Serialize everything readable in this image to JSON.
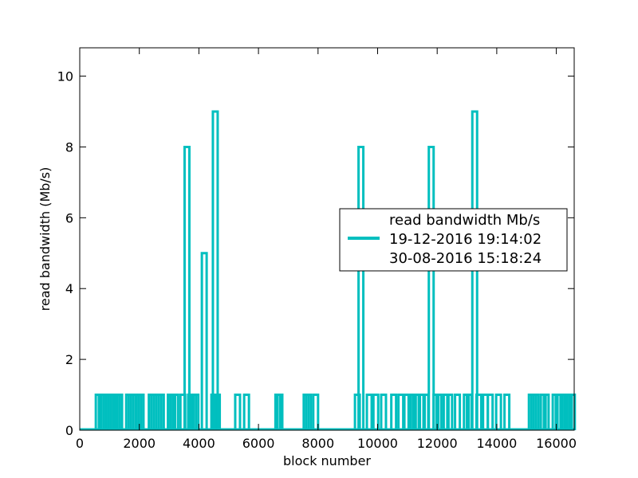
{
  "chart_data": {
    "type": "line",
    "title": "",
    "xlabel": "block number",
    "ylabel": "read bandwidth (Mb/s)",
    "xlim": [
      0,
      16600
    ],
    "ylim": [
      0,
      10.8
    ],
    "x_ticks": [
      0,
      2000,
      4000,
      6000,
      8000,
      10000,
      12000,
      14000,
      16000
    ],
    "y_ticks": [
      0,
      2,
      4,
      6,
      8,
      10
    ],
    "grid": false,
    "legend_placement": "center-right",
    "legend_lines": [
      "read bandwidth Mb/s",
      "19-12-2016 19:14:02",
      "30-08-2016 15:18:24"
    ],
    "series": [
      {
        "color": "#00bfbf",
        "spikes": [
          {
            "x": 620,
            "y": 1
          },
          {
            "x": 720,
            "y": 1
          },
          {
            "x": 800,
            "y": 1
          },
          {
            "x": 880,
            "y": 1
          },
          {
            "x": 960,
            "y": 1
          },
          {
            "x": 1040,
            "y": 1
          },
          {
            "x": 1120,
            "y": 1
          },
          {
            "x": 1260,
            "y": 1
          },
          {
            "x": 1340,
            "y": 1
          },
          {
            "x": 1640,
            "y": 1
          },
          {
            "x": 1720,
            "y": 1
          },
          {
            "x": 1800,
            "y": 1
          },
          {
            "x": 1980,
            "y": 1
          },
          {
            "x": 2060,
            "y": 1
          },
          {
            "x": 2400,
            "y": 1
          },
          {
            "x": 2480,
            "y": 1
          },
          {
            "x": 2660,
            "y": 1
          },
          {
            "x": 2740,
            "y": 1
          },
          {
            "x": 3040,
            "y": 1
          },
          {
            "x": 3120,
            "y": 1
          },
          {
            "x": 3220,
            "y": 1
          },
          {
            "x": 3460,
            "y": 1
          },
          {
            "x": 3600,
            "y": 8
          },
          {
            "x": 3720,
            "y": 1
          },
          {
            "x": 3820,
            "y": 1
          },
          {
            "x": 3900,
            "y": 1
          },
          {
            "x": 4180,
            "y": 5
          },
          {
            "x": 4500,
            "y": 1
          },
          {
            "x": 4550,
            "y": 9
          },
          {
            "x": 4620,
            "y": 1
          },
          {
            "x": 5300,
            "y": 1
          },
          {
            "x": 5600,
            "y": 1
          },
          {
            "x": 6650,
            "y": 1
          },
          {
            "x": 6720,
            "y": 1
          },
          {
            "x": 7600,
            "y": 1
          },
          {
            "x": 7680,
            "y": 1
          },
          {
            "x": 7920,
            "y": 1
          },
          {
            "x": 9320,
            "y": 1
          },
          {
            "x": 9440,
            "y": 8
          },
          {
            "x": 9720,
            "y": 1
          },
          {
            "x": 9940,
            "y": 1
          },
          {
            "x": 10200,
            "y": 1
          },
          {
            "x": 10540,
            "y": 1
          },
          {
            "x": 10780,
            "y": 1
          },
          {
            "x": 10980,
            "y": 1
          },
          {
            "x": 11120,
            "y": 1
          },
          {
            "x": 11200,
            "y": 1
          },
          {
            "x": 11300,
            "y": 1
          },
          {
            "x": 11500,
            "y": 1
          },
          {
            "x": 11620,
            "y": 1
          },
          {
            "x": 11800,
            "y": 8
          },
          {
            "x": 11960,
            "y": 1
          },
          {
            "x": 12060,
            "y": 1
          },
          {
            "x": 12300,
            "y": 1
          },
          {
            "x": 12420,
            "y": 1
          },
          {
            "x": 12680,
            "y": 1
          },
          {
            "x": 12980,
            "y": 1
          },
          {
            "x": 13080,
            "y": 1
          },
          {
            "x": 13260,
            "y": 9
          },
          {
            "x": 13400,
            "y": 1
          },
          {
            "x": 13620,
            "y": 1
          },
          {
            "x": 13780,
            "y": 1
          },
          {
            "x": 14060,
            "y": 1
          },
          {
            "x": 14340,
            "y": 1
          },
          {
            "x": 15160,
            "y": 1
          },
          {
            "x": 15240,
            "y": 1
          },
          {
            "x": 15320,
            "y": 1
          },
          {
            "x": 15560,
            "y": 1
          },
          {
            "x": 15660,
            "y": 1
          },
          {
            "x": 15960,
            "y": 1
          },
          {
            "x": 16060,
            "y": 1
          },
          {
            "x": 16280,
            "y": 1
          },
          {
            "x": 16360,
            "y": 1
          },
          {
            "x": 16440,
            "y": 1
          },
          {
            "x": 16540,
            "y": 1
          }
        ]
      }
    ]
  }
}
